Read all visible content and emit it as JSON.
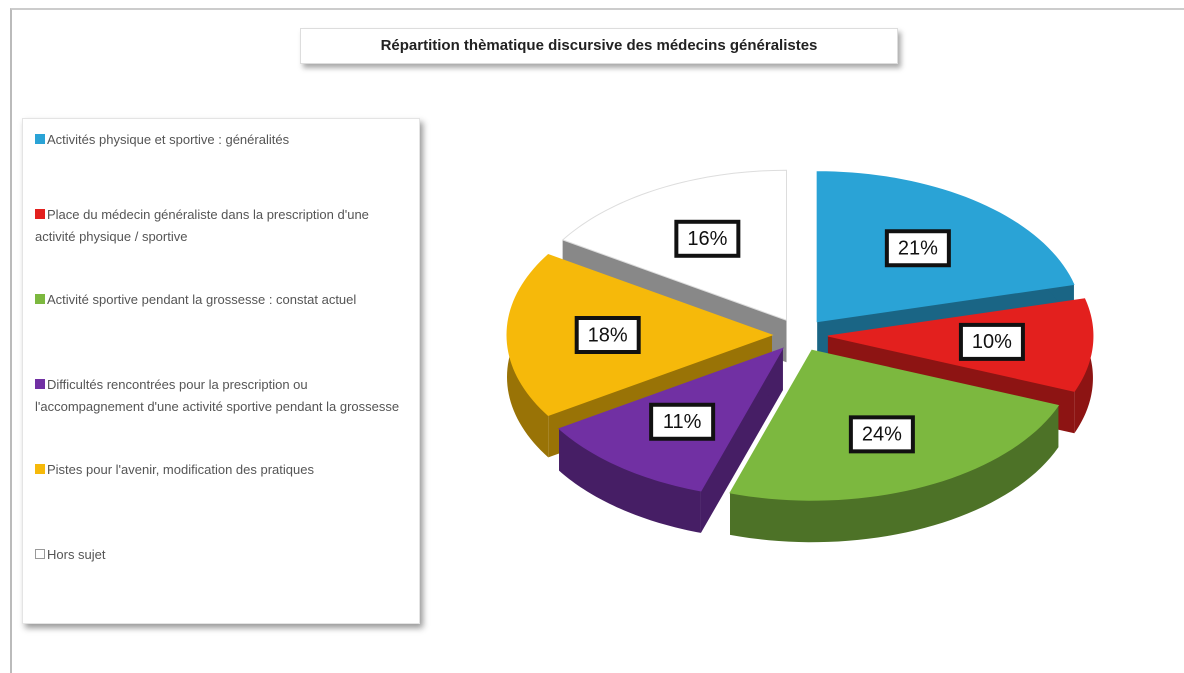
{
  "chart_data": {
    "type": "pie",
    "title": "Répartition thèmatique discursive des médecins généralistes",
    "categories": [
      "Activités physique et sportive : généralités",
      "Place du médecin généraliste dans la prescription d'une activité physique / sportive",
      "Activité sportive pendant la grossesse : constat actuel",
      "Difficultés rencontrées pour la prescription ou l'accompagnement d'une activité sportive pendant la grossesse",
      "Pistes pour l'avenir, modification des pratiques",
      "Hors sujet"
    ],
    "values": [
      21,
      10,
      24,
      11,
      18,
      16
    ],
    "value_labels": [
      "21%",
      "10%",
      "24%",
      "11%",
      "18%",
      "16%"
    ],
    "colors": [
      "#2aa3d6",
      "#e3201e",
      "#7cb83f",
      "#7130a3",
      "#f6b90a",
      "#ffffff"
    ],
    "legend": "left"
  }
}
